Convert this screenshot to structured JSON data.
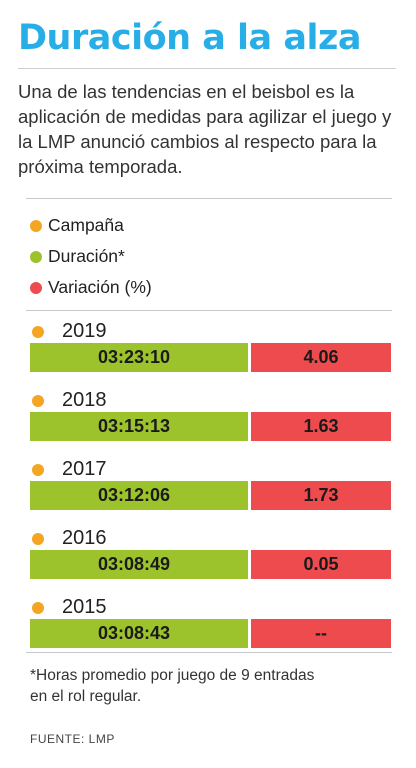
{
  "title": "Duración a la alza",
  "intro": "Una de las tendencias en el beisbol es la aplicación de medidas para agilizar el juego y la LMP anunció cambios al respecto para la próxima temporada.",
  "colors": {
    "title": "#28aee6",
    "campana": "#f4a522",
    "duracion": "#9dc32c",
    "variacion": "#ee4b4f"
  },
  "legend": [
    {
      "label": "Campaña",
      "color": "#f4a522"
    },
    {
      "label": "Duración*",
      "color": "#9dc32c"
    },
    {
      "label": "Variación (%)",
      "color": "#ee4b4f"
    }
  ],
  "chart_data": {
    "type": "table",
    "columns": [
      "Campaña",
      "Duración*",
      "Variación (%)"
    ],
    "rows": [
      {
        "campana": "2019",
        "duracion": "03:23:10",
        "variacion": "4.06"
      },
      {
        "campana": "2018",
        "duracion": "03:15:13",
        "variacion": "1.63"
      },
      {
        "campana": "2017",
        "duracion": "03:12:06",
        "variacion": "1.73"
      },
      {
        "campana": "2016",
        "duracion": "03:08:49",
        "variacion": "0.05"
      },
      {
        "campana": "2015",
        "duracion": "03:08:43",
        "variacion": "--"
      }
    ]
  },
  "footnote": "*Horas promedio por juego de 9 entradas en el rol regular.",
  "source": "FUENTE: LMP"
}
